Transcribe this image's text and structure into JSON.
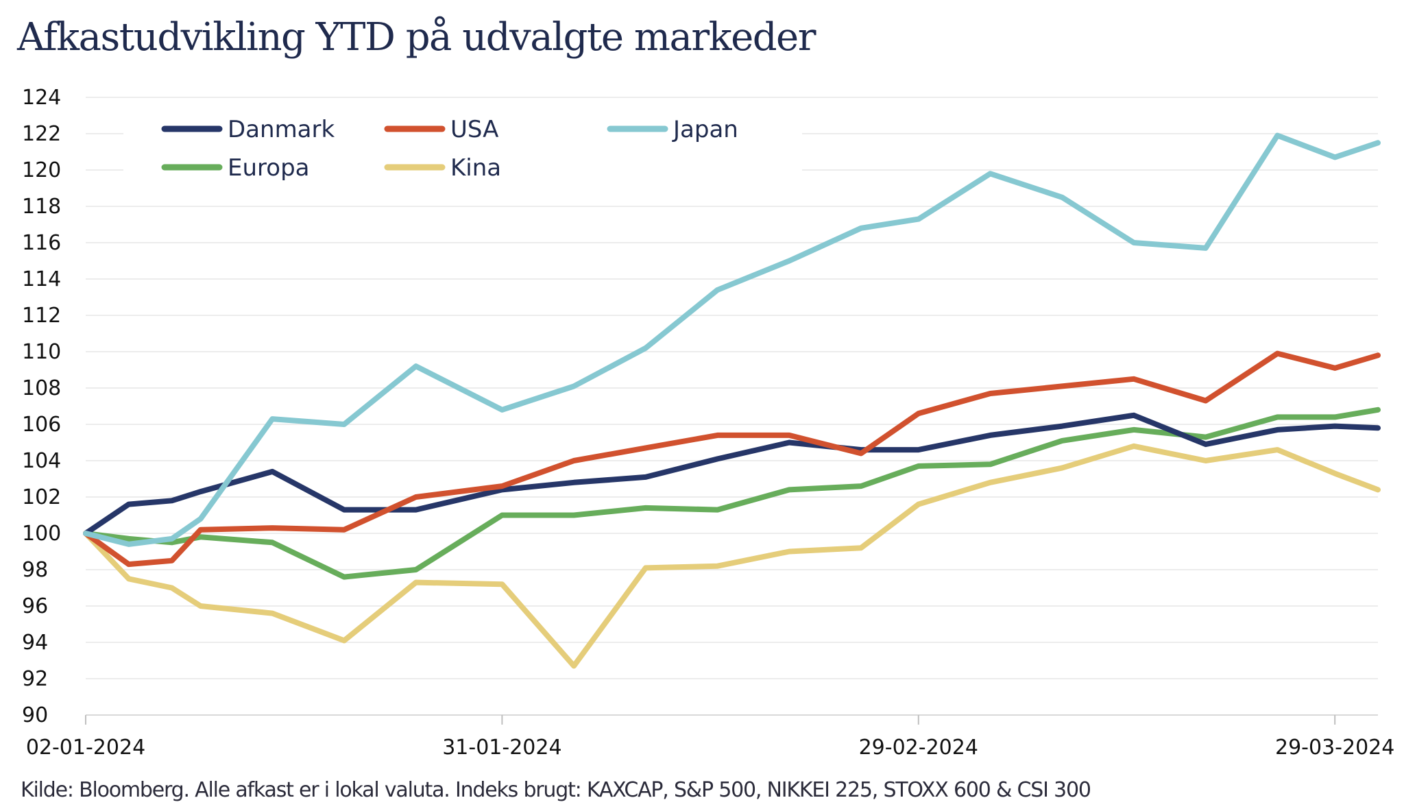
{
  "colors": {
    "Danmark": "#263668",
    "USA": "#d1512e",
    "Japan": "#86c8d1",
    "Europa": "#67ad5b",
    "Kina": "#e5cd7a",
    "grid": "#e6e6e6",
    "title": "#1f2a4d"
  },
  "chart_data": {
    "type": "line",
    "title": "Afkastudvikling YTD på udvalgte markeder",
    "source": "Kilde: Bloomberg. Alle afkast er i lokal valuta. Indeks brugt: KAXCAP, S&P 500, NIKKEI 225, STOXX 600 & CSI 300",
    "xlabel": "",
    "ylabel": "",
    "ylim": [
      90,
      124
    ],
    "yticks": [
      "90",
      "92",
      "94",
      "96",
      "98",
      "100",
      "102",
      "104",
      "106",
      "108",
      "110",
      "112",
      "114",
      "116",
      "118",
      "120",
      "122",
      "124"
    ],
    "xticks": [
      "02-01-2024",
      "31-01-2024",
      "29-02-2024",
      "29-03-2024"
    ],
    "grid": "horizontal",
    "legend_position": "top-left",
    "x": [
      "2024-01-02",
      "2024-01-05",
      "2024-01-08",
      "2024-01-10",
      "2024-01-15",
      "2024-01-20",
      "2024-01-25",
      "2024-01-31",
      "2024-02-05",
      "2024-02-10",
      "2024-02-15",
      "2024-02-20",
      "2024-02-25",
      "2024-02-29",
      "2024-03-05",
      "2024-03-10",
      "2024-03-15",
      "2024-03-20",
      "2024-03-25",
      "2024-03-29",
      "2024-04-01"
    ],
    "series": [
      {
        "name": "Danmark",
        "values": [
          100,
          101.6,
          101.8,
          102.3,
          103.4,
          101.3,
          101.3,
          102.4,
          102.8,
          103.1,
          104.1,
          105.0,
          104.6,
          104.6,
          105.4,
          105.9,
          106.5,
          104.9,
          105.7,
          105.9,
          105.8
        ]
      },
      {
        "name": "USA",
        "values": [
          100,
          98.3,
          98.5,
          100.2,
          100.3,
          100.2,
          102.0,
          102.6,
          104.0,
          104.7,
          105.4,
          105.4,
          104.4,
          106.6,
          107.7,
          108.1,
          108.5,
          107.3,
          109.9,
          109.1,
          109.8
        ]
      },
      {
        "name": "Japan",
        "values": [
          100,
          99.4,
          99.7,
          100.8,
          106.3,
          106.0,
          109.2,
          106.8,
          108.1,
          110.2,
          113.4,
          115.0,
          116.8,
          117.3,
          119.8,
          118.5,
          116.0,
          115.7,
          121.9,
          120.7,
          121.5
        ]
      },
      {
        "name": "Europa",
        "values": [
          100,
          99.7,
          99.5,
          99.8,
          99.5,
          97.6,
          98.0,
          101.0,
          101.0,
          101.4,
          101.3,
          102.4,
          102.6,
          103.7,
          103.8,
          105.1,
          105.7,
          105.3,
          106.4,
          106.4,
          106.8
        ]
      },
      {
        "name": "Kina",
        "values": [
          100,
          97.5,
          97.0,
          96.0,
          95.6,
          94.1,
          97.3,
          97.2,
          92.7,
          98.1,
          98.2,
          99.0,
          99.2,
          101.6,
          102.8,
          103.6,
          104.8,
          104.0,
          104.6,
          103.3,
          102.4
        ]
      }
    ]
  }
}
